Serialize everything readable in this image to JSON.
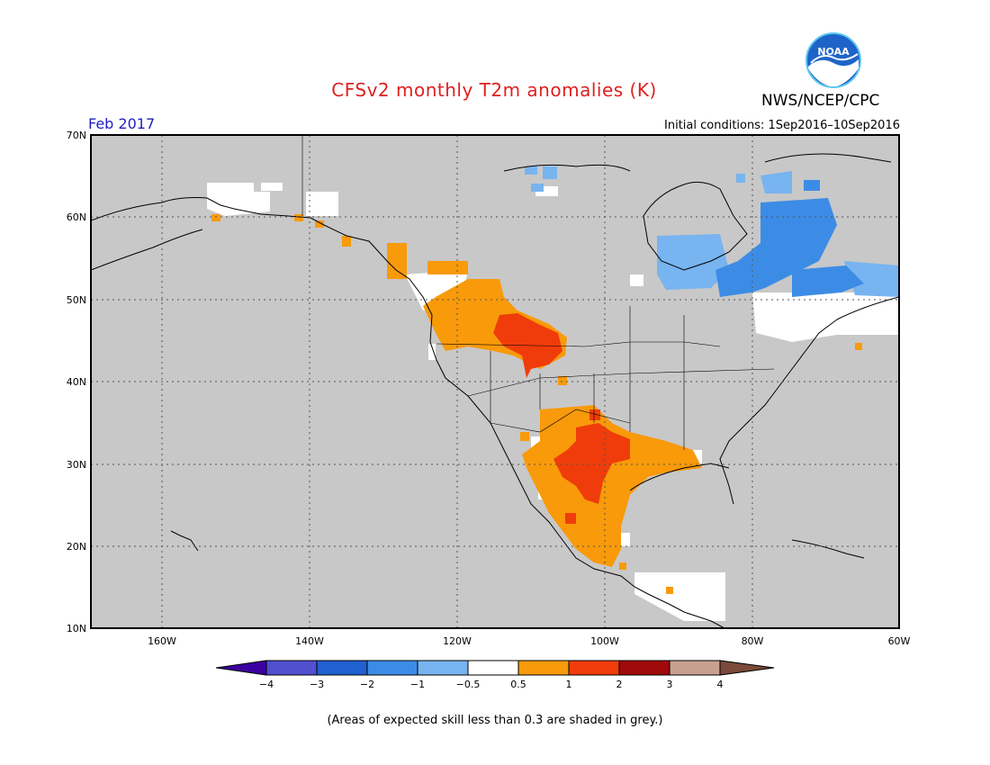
{
  "header": {
    "title": "CFSv2 monthly T2m anomalies (K)",
    "agency": "NWS/NCEP/CPC",
    "month": "Feb 2017",
    "initial_conditions": "Initial conditions: 1Sep2016–10Sep2016",
    "logo_text": "NOAA"
  },
  "map": {
    "lat_labels": [
      "70N",
      "60N",
      "50N",
      "40N",
      "30N",
      "20N",
      "10N"
    ],
    "lon_labels": [
      "160W",
      "140W",
      "120W",
      "100W",
      "80W",
      "60W"
    ],
    "skill_mask_color": "#c8c8c8"
  },
  "colorbar": {
    "tick_labels": [
      "−4",
      "−3",
      "−2",
      "−1",
      "−0.5",
      "0.5",
      "1",
      "2",
      "3",
      "4"
    ],
    "colors": [
      "#3c00a0",
      "#5050d0",
      "#2060d0",
      "#3c8ce6",
      "#78b4f0",
      "#ffffff",
      "#f89a0a",
      "#f03c0a",
      "#a00a0a",
      "#c8a090",
      "#7a4a3a"
    ]
  },
  "footnote": "(Areas of expected skill less than 0.3 are shaded in grey.)"
}
